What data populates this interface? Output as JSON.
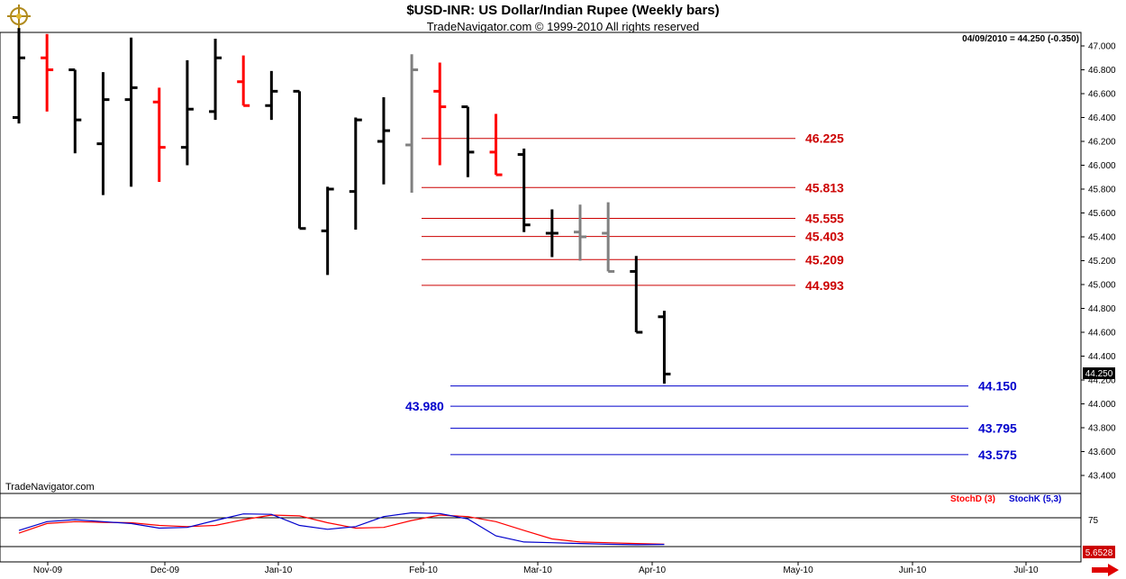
{
  "header": {
    "title": "$USD-INR:  US Dollar/Indian Rupee  (Weekly bars)",
    "subtitle": "TradeNavigator.com © 1999-2010 All rights reserved",
    "readout": "04/09/2010 = 44.250 (-0.350)",
    "watermark": "TradeNavigator.com"
  },
  "colors": {
    "up_bar": "#000000",
    "down_bar": "#ff0000",
    "neutral_bar": "#808080",
    "resistance": "#cc0000",
    "support": "#0000cc",
    "stoch_d": "#ff0000",
    "stoch_k": "#0000cc"
  },
  "chart_data": {
    "type": "ohlc",
    "price_axis": {
      "min": 43.3,
      "max": 47.1,
      "ticks": [
        "47.000",
        "46.800",
        "46.600",
        "46.400",
        "46.200",
        "46.000",
        "45.800",
        "45.600",
        "45.400",
        "45.200",
        "45.000",
        "44.800",
        "44.600",
        "44.400",
        "44.200",
        "44.000",
        "43.800",
        "43.600",
        "43.400"
      ],
      "last_price": "44.250"
    },
    "x_labels": [
      "Nov-09",
      "Dec-09",
      "Jan-10",
      "Feb-10",
      "Mar-10",
      "Apr-10",
      "May-10",
      "Jun-10",
      "Jul-10"
    ],
    "bars": [
      {
        "o": 46.4,
        "h": 47.15,
        "l": 46.35,
        "c": 46.9,
        "color": "up"
      },
      {
        "o": 46.9,
        "h": 47.1,
        "l": 46.45,
        "c": 46.8,
        "color": "down"
      },
      {
        "o": 46.8,
        "h": 46.8,
        "l": 46.1,
        "c": 46.38,
        "color": "up"
      },
      {
        "o": 46.18,
        "h": 46.78,
        "l": 45.75,
        "c": 46.55,
        "color": "up"
      },
      {
        "o": 46.55,
        "h": 47.07,
        "l": 45.82,
        "c": 46.65,
        "color": "up"
      },
      {
        "o": 46.53,
        "h": 46.65,
        "l": 45.86,
        "c": 46.15,
        "color": "down"
      },
      {
        "o": 46.15,
        "h": 46.88,
        "l": 46.0,
        "c": 46.47,
        "color": "up"
      },
      {
        "o": 46.45,
        "h": 47.06,
        "l": 46.38,
        "c": 46.9,
        "color": "up"
      },
      {
        "o": 46.7,
        "h": 46.92,
        "l": 46.5,
        "c": 46.5,
        "color": "down"
      },
      {
        "o": 46.5,
        "h": 46.79,
        "l": 46.38,
        "c": 46.62,
        "color": "up"
      },
      {
        "o": 46.62,
        "h": 46.62,
        "l": 45.47,
        "c": 45.47,
        "color": "up"
      },
      {
        "o": 45.45,
        "h": 45.82,
        "l": 45.08,
        "c": 45.8,
        "color": "up"
      },
      {
        "o": 45.78,
        "h": 46.4,
        "l": 45.46,
        "c": 46.38,
        "color": "up"
      },
      {
        "o": 46.2,
        "h": 46.57,
        "l": 45.84,
        "c": 46.29,
        "color": "up"
      },
      {
        "o": 46.17,
        "h": 46.93,
        "l": 45.77,
        "c": 46.8,
        "color": "neutral"
      },
      {
        "o": 46.62,
        "h": 46.86,
        "l": 46.0,
        "c": 46.49,
        "color": "down"
      },
      {
        "o": 46.49,
        "h": 46.49,
        "l": 45.9,
        "c": 46.11,
        "color": "up"
      },
      {
        "o": 46.11,
        "h": 46.43,
        "l": 45.92,
        "c": 45.92,
        "color": "down"
      },
      {
        "o": 46.09,
        "h": 46.14,
        "l": 45.44,
        "c": 45.5,
        "color": "up"
      },
      {
        "o": 45.43,
        "h": 45.63,
        "l": 45.23,
        "c": 45.43,
        "color": "up"
      },
      {
        "o": 45.44,
        "h": 45.67,
        "l": 45.2,
        "c": 45.4,
        "color": "neutral"
      },
      {
        "o": 45.43,
        "h": 45.69,
        "l": 45.11,
        "c": 45.11,
        "color": "neutral"
      },
      {
        "o": 45.11,
        "h": 45.24,
        "l": 44.6,
        "c": 44.6,
        "color": "up"
      },
      {
        "o": 44.73,
        "h": 44.78,
        "l": 44.17,
        "c": 44.25,
        "color": "up"
      }
    ],
    "resistance_levels": [
      "46.225",
      "45.813",
      "45.555",
      "45.403",
      "45.209",
      "44.993"
    ],
    "support_levels": [
      "44.150",
      "43.980",
      "43.795",
      "43.575"
    ],
    "stochastic": {
      "tick": "75",
      "last_value": "5.6528",
      "series": [
        {
          "name": "StochD (3)",
          "values": [
            35,
            60,
            65,
            63,
            62,
            55,
            52,
            55,
            70,
            82,
            80,
            62,
            48,
            50,
            68,
            82,
            78,
            65,
            42,
            20,
            12,
            10,
            8,
            6
          ]
        },
        {
          "name": "StochK (5,3)",
          "values": [
            42,
            65,
            70,
            65,
            60,
            48,
            50,
            68,
            85,
            84,
            55,
            45,
            52,
            78,
            88,
            86,
            72,
            28,
            12,
            10,
            8,
            6,
            5,
            5.65
          ]
        }
      ]
    }
  }
}
